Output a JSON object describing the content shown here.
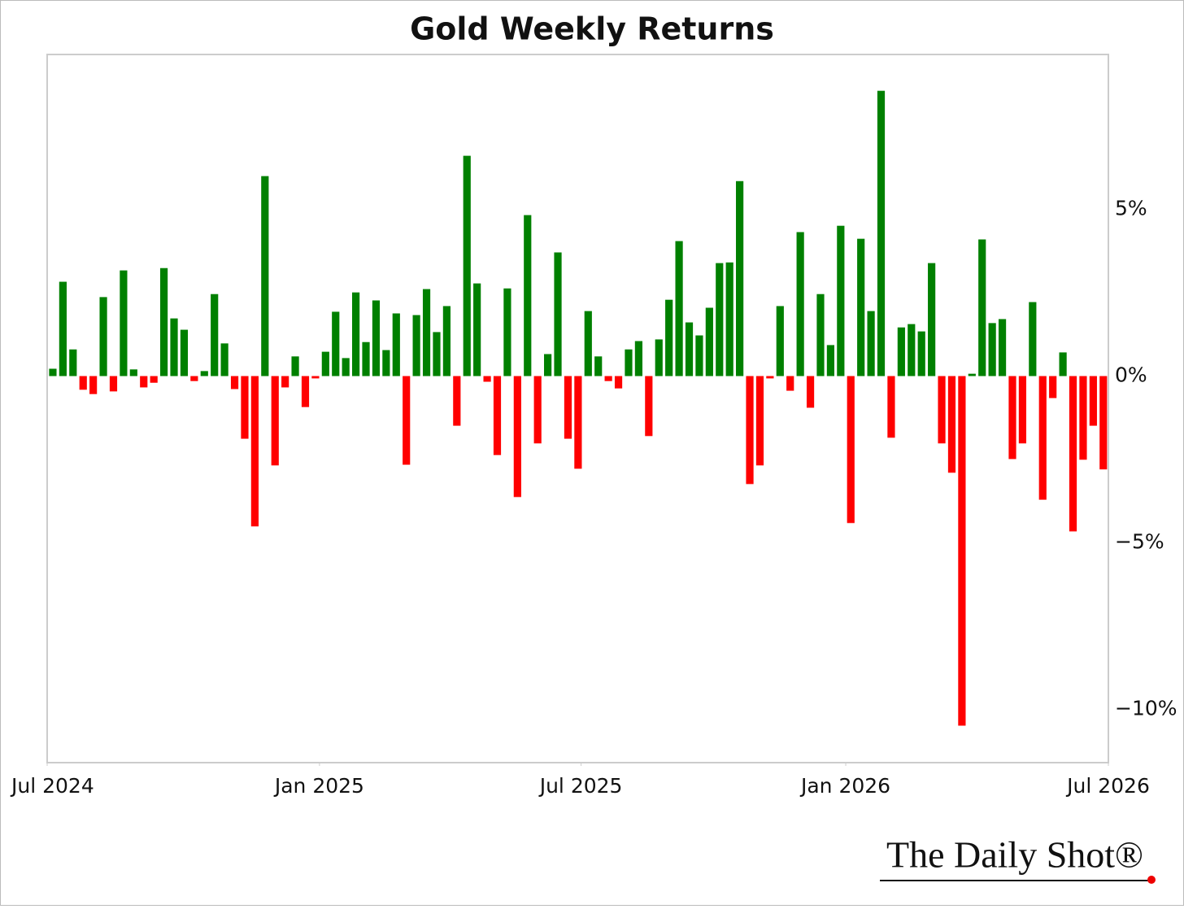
{
  "chart_data": {
    "type": "bar",
    "title": "Gold Weekly Returns",
    "categories": [
      null,
      null,
      null,
      null,
      null,
      null,
      null,
      null,
      null,
      null,
      null,
      null,
      null,
      null,
      null,
      null,
      null,
      null,
      null,
      null,
      null,
      null,
      null,
      null,
      null,
      null,
      null,
      null,
      null,
      null,
      null,
      null,
      null,
      null,
      null,
      null,
      null,
      null,
      null,
      null,
      null,
      null,
      null,
      null,
      null,
      null,
      null,
      null,
      null,
      null,
      null,
      null,
      null,
      null,
      null,
      null,
      null,
      null,
      null,
      null,
      null,
      null,
      null,
      null,
      null,
      null,
      null,
      null,
      null,
      null,
      null,
      null,
      null,
      null,
      null,
      null,
      null,
      null,
      null,
      null,
      null,
      null,
      null,
      null,
      null,
      null,
      null,
      null,
      null,
      null,
      null,
      null,
      null,
      null,
      null,
      null,
      null,
      null,
      null,
      null,
      null,
      null,
      null,
      null,
      null
    ],
    "values": [
      0.22,
      2.83,
      0.8,
      -0.41,
      -0.54,
      2.37,
      -0.46,
      3.17,
      0.2,
      -0.34,
      -0.2,
      3.24,
      1.73,
      1.39,
      -0.15,
      0.15,
      2.46,
      0.98,
      -0.39,
      -1.88,
      -4.51,
      6.0,
      -2.68,
      -0.34,
      0.59,
      -0.93,
      -0.07,
      0.73,
      1.93,
      0.54,
      2.51,
      1.02,
      2.27,
      0.78,
      1.88,
      -2.66,
      1.83,
      2.61,
      1.32,
      2.1,
      -1.49,
      6.61,
      2.78,
      -0.17,
      -2.37,
      2.63,
      -3.63,
      4.83,
      -2.02,
      0.66,
      3.71,
      -1.88,
      -2.78,
      1.95,
      0.59,
      -0.15,
      -0.37,
      0.8,
      1.05,
      -1.8,
      1.1,
      2.29,
      4.05,
      1.61,
      1.22,
      2.05,
      3.39,
      3.41,
      5.85,
      -3.24,
      -2.68,
      -0.07,
      2.1,
      -0.44,
      4.32,
      -0.95,
      2.46,
      0.93,
      4.51,
      -4.41,
      4.12,
      1.95,
      8.56,
      -1.85,
      1.46,
      1.56,
      1.34,
      3.39,
      -2.02,
      -2.9,
      -10.49,
      0.07,
      4.1,
      1.59,
      1.71,
      -2.49,
      -2.02,
      2.22,
      -3.71,
      -0.66,
      0.71,
      -4.66,
      -2.51,
      -1.49,
      -2.8
    ],
    "positive_color": "#008000",
    "negative_color": "#ff0000",
    "ylim": [
      -11.6,
      9.65
    ],
    "yticks": [
      {
        "value": 5,
        "label": "5%"
      },
      {
        "value": 0,
        "label": "0%"
      },
      {
        "value": -5,
        "label": "−5%"
      },
      {
        "value": -10,
        "label": "−10%"
      }
    ],
    "xlim": [
      -0.56,
      104.5
    ],
    "xticks": [
      {
        "value": -0.56,
        "label": "Jul 2024"
      },
      {
        "value": 26.4,
        "label": "Jan 2025"
      },
      {
        "value": 52.3,
        "label": "Jul 2025"
      },
      {
        "value": 78.5,
        "label": "Jan 2026"
      },
      {
        "value": 104.5,
        "label": "Jul 2026"
      }
    ],
    "grid": false,
    "watermark": "The Daily Shot®"
  }
}
